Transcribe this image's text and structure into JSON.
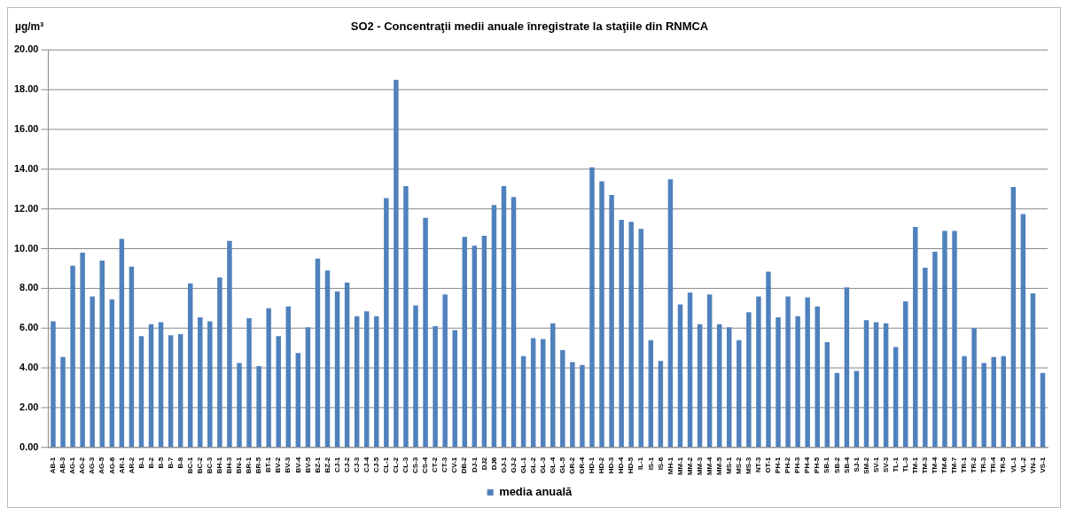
{
  "chart_data": {
    "type": "bar",
    "title": "SO2 - Concentraţii medii anuale înregistrate la staţiile din RNMCA",
    "ylabel": "µg/m³",
    "categories": [
      "AB-1",
      "AB-3",
      "AG-1",
      "AG-2",
      "AG-3",
      "AG-5",
      "AG-6",
      "AR-1",
      "AR-2",
      "B-1",
      "B-2",
      "B-5",
      "B-7",
      "B-8",
      "BC-1",
      "BC-2",
      "BC-3",
      "BH-1",
      "BH-3",
      "BN-1",
      "BR-1",
      "BR-5",
      "BT-1",
      "BV-2",
      "BV-3",
      "BV-4",
      "BV-5",
      "BZ-1",
      "BZ-2",
      "CJ-1",
      "CJ-2",
      "CJ-3",
      "CJ-4",
      "CJ-5",
      "CL-1",
      "CL-2",
      "CL-3",
      "CS-3",
      "CS-4",
      "CT-2",
      "CT-3",
      "CV-1",
      "DB-2",
      "DJ-1",
      "DJ2",
      "DJ6",
      "GJ-1",
      "GJ-2",
      "GL-1",
      "GL-2",
      "GL-3",
      "GL-4",
      "GL-5",
      "GR-2",
      "GR-4",
      "HD-1",
      "HD-2",
      "HD-3",
      "HD-4",
      "HD-5",
      "IL-1",
      "IS-1",
      "IS-6",
      "MH-1",
      "MM-1",
      "MM-2",
      "MM-3",
      "MM-4",
      "MM-5",
      "MS-1",
      "MS-2",
      "MS-3",
      "NT-3",
      "OT-1",
      "PH-1",
      "PH-2",
      "PH-3",
      "PH-4",
      "PH-5",
      "SB-1",
      "SB-2",
      "SB-4",
      "SJ-1",
      "SM-2",
      "SV-1",
      "SV-3",
      "TL-1",
      "TL-3",
      "TM-1",
      "TM-3",
      "TM-4",
      "TM-6",
      "TM-7",
      "TR-1",
      "TR-2",
      "TR-3",
      "TR-4",
      "TR-5",
      "VL-1",
      "VL-2",
      "VN-1",
      "VS-1"
    ],
    "series": [
      {
        "name": "media anuală",
        "color": "#4f81bd",
        "values": [
          6.35,
          4.55,
          9.15,
          9.8,
          7.6,
          9.4,
          7.45,
          10.5,
          9.1,
          5.6,
          6.2,
          6.3,
          5.65,
          5.7,
          8.25,
          6.55,
          6.35,
          8.55,
          10.4,
          4.25,
          6.5,
          4.1,
          7.0,
          5.6,
          7.1,
          4.75,
          6.05,
          9.5,
          8.9,
          7.85,
          8.3,
          6.6,
          6.85,
          6.6,
          12.55,
          18.5,
          13.15,
          7.15,
          11.55,
          6.1,
          7.7,
          5.9,
          10.6,
          10.15,
          10.65,
          12.2,
          13.15,
          12.6,
          4.6,
          5.5,
          5.45,
          6.25,
          4.9,
          4.3,
          4.15,
          14.1,
          13.4,
          12.7,
          11.45,
          11.35,
          11.0,
          5.4,
          4.35,
          13.5,
          7.2,
          7.8,
          6.2,
          7.7,
          6.2,
          6.05,
          5.4,
          6.8,
          7.6,
          8.85,
          6.55,
          7.6,
          6.6,
          7.55,
          7.1,
          5.3,
          3.75,
          8.05,
          3.85,
          6.4,
          6.3,
          6.25,
          5.05,
          7.35,
          11.1,
          9.05,
          9.85,
          10.9,
          10.9,
          4.6,
          6.0,
          4.25,
          4.55,
          4.6,
          13.1,
          11.75,
          7.75,
          3.75
        ]
      }
    ],
    "ylim": [
      0,
      20
    ],
    "yticks": [
      {
        "value": 0,
        "label": "0.00"
      },
      {
        "value": 2,
        "label": "2.00"
      },
      {
        "value": 4,
        "label": "4.00"
      },
      {
        "value": 6,
        "label": "6.00"
      },
      {
        "value": 8,
        "label": "8.00"
      },
      {
        "value": 10,
        "label": "10.00"
      },
      {
        "value": 12,
        "label": "12.00"
      },
      {
        "value": 14,
        "label": "14.00"
      },
      {
        "value": 16,
        "label": "16.00"
      },
      {
        "value": 18,
        "label": "18.00"
      },
      {
        "value": 20,
        "label": "20.00"
      }
    ],
    "grid": "y",
    "legend": "bottom"
  }
}
